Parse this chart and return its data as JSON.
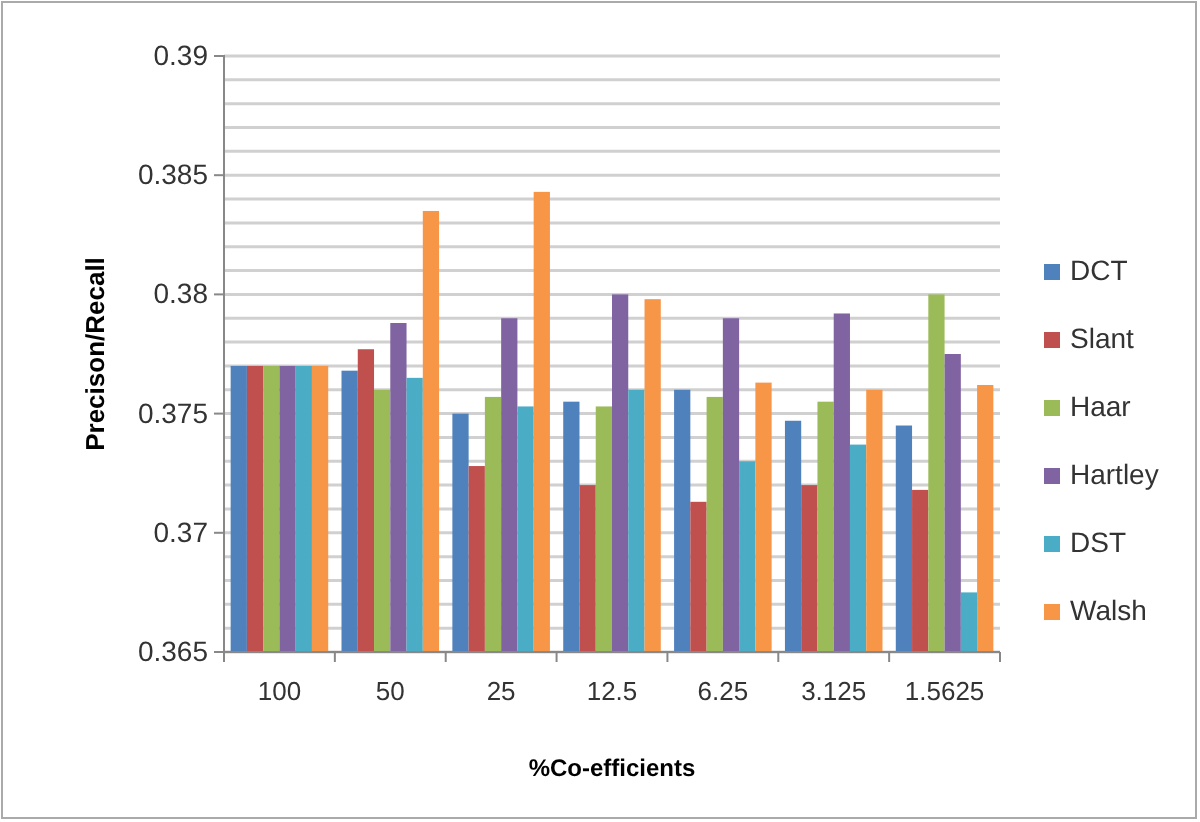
{
  "chart_data": {
    "type": "bar",
    "xlabel": "%Co-efficients",
    "ylabel": "Precison/Recall",
    "categories": [
      "100",
      "50",
      "25",
      "12.5",
      "6.25",
      "3.125",
      "1.5625"
    ],
    "series": [
      {
        "name": "DCT",
        "color": "#4f81bd",
        "values": [
          0.377,
          0.3768,
          0.375,
          0.3755,
          0.376,
          0.3747,
          0.3745
        ]
      },
      {
        "name": "Slant",
        "color": "#c0504d",
        "values": [
          0.377,
          0.3777,
          0.3728,
          0.372,
          0.3713,
          0.372,
          0.3718
        ]
      },
      {
        "name": "Haar",
        "color": "#9bbb59",
        "values": [
          0.377,
          0.376,
          0.3757,
          0.3753,
          0.3757,
          0.3755,
          0.38
        ]
      },
      {
        "name": "Hartley",
        "color": "#8064a2",
        "values": [
          0.377,
          0.3788,
          0.379,
          0.38,
          0.379,
          0.3792,
          0.3775
        ]
      },
      {
        "name": "DST",
        "color": "#4bacc6",
        "values": [
          0.377,
          0.3765,
          0.3753,
          0.376,
          0.373,
          0.3737,
          0.3675
        ]
      },
      {
        "name": "Walsh",
        "color": "#f79646",
        "values": [
          0.377,
          0.3835,
          0.3843,
          0.3798,
          0.3763,
          0.376,
          0.3762
        ]
      }
    ],
    "ylim": [
      0.365,
      0.39
    ],
    "yticks": [
      {
        "value": 0.365,
        "label": "0.365"
      },
      {
        "value": 0.366,
        "label": null
      },
      {
        "value": 0.367,
        "label": null
      },
      {
        "value": 0.368,
        "label": null
      },
      {
        "value": 0.369,
        "label": null
      },
      {
        "value": 0.37,
        "label": "0.37"
      },
      {
        "value": 0.371,
        "label": null
      },
      {
        "value": 0.372,
        "label": null
      },
      {
        "value": 0.373,
        "label": null
      },
      {
        "value": 0.374,
        "label": null
      },
      {
        "value": 0.375,
        "label": "0.375"
      },
      {
        "value": 0.376,
        "label": null
      },
      {
        "value": 0.377,
        "label": null
      },
      {
        "value": 0.378,
        "label": null
      },
      {
        "value": 0.379,
        "label": null
      },
      {
        "value": 0.38,
        "label": "0.38"
      },
      {
        "value": 0.381,
        "label": null
      },
      {
        "value": 0.382,
        "label": null
      },
      {
        "value": 0.383,
        "label": null
      },
      {
        "value": 0.384,
        "label": null
      },
      {
        "value": 0.385,
        "label": "0.385"
      },
      {
        "value": 0.386,
        "label": null
      },
      {
        "value": 0.387,
        "label": null
      },
      {
        "value": 0.388,
        "label": null
      },
      {
        "value": 0.389,
        "label": null
      },
      {
        "value": 0.39,
        "label": "0.39"
      }
    ],
    "grid": "y",
    "legend": "right"
  }
}
